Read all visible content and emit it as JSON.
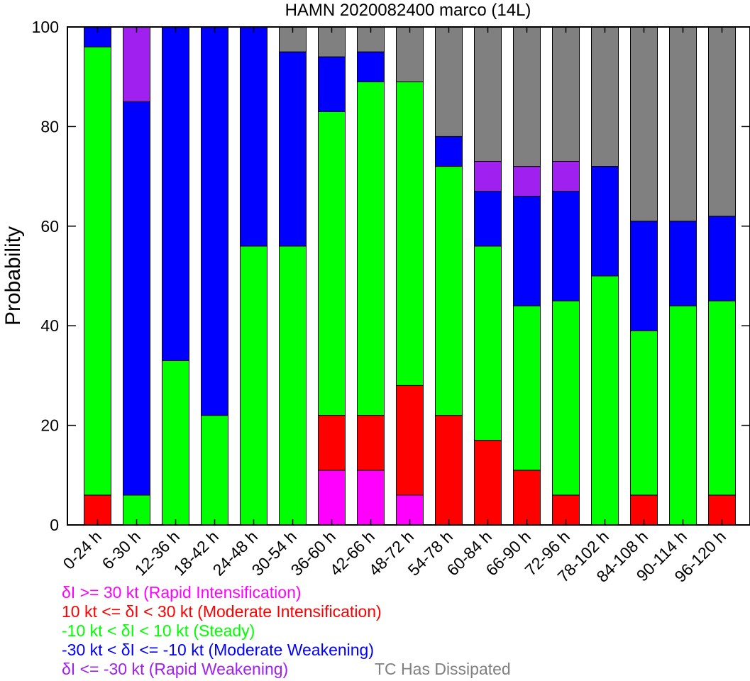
{
  "chart_data": {
    "type": "bar",
    "stacked": true,
    "title": "HAMN 2020082400 marco (14L)",
    "ylabel": "Probability",
    "xlabel": "",
    "ylim": [
      0,
      100
    ],
    "yticks": [
      0,
      20,
      40,
      60,
      80,
      100
    ],
    "grid": false,
    "categories": [
      "0-24 h",
      "6-30 h",
      "12-36 h",
      "18-42 h",
      "24-48 h",
      "30-54 h",
      "36-60 h",
      "42-66 h",
      "48-72 h",
      "54-78 h",
      "60-84 h",
      "66-90 h",
      "72-96 h",
      "78-102 h",
      "84-108 h",
      "90-114 h",
      "96-120 h"
    ],
    "series": [
      {
        "key": "ri",
        "color": "#ff00ff",
        "values": [
          0,
          0,
          0,
          0,
          0,
          0,
          11,
          11,
          6,
          0,
          0,
          0,
          0,
          0,
          0,
          0,
          0
        ]
      },
      {
        "key": "mi",
        "color": "#ff0000",
        "values": [
          6,
          0,
          0,
          0,
          0,
          0,
          11,
          11,
          22,
          22,
          17,
          11,
          6,
          0,
          6,
          0,
          6
        ]
      },
      {
        "key": "st",
        "color": "#00ff00",
        "values": [
          90,
          6,
          33,
          22,
          56,
          56,
          61,
          67,
          61,
          50,
          39,
          33,
          39,
          50,
          33,
          44,
          39
        ]
      },
      {
        "key": "mw",
        "color": "#0000ff",
        "values": [
          4,
          79,
          67,
          78,
          44,
          39,
          11,
          6,
          0,
          6,
          11,
          22,
          22,
          22,
          22,
          17,
          17
        ]
      },
      {
        "key": "rw",
        "color": "#a020f0",
        "values": [
          0,
          15,
          0,
          0,
          0,
          0,
          0,
          0,
          0,
          0,
          6,
          6,
          6,
          0,
          0,
          0,
          0
        ]
      },
      {
        "key": "dis",
        "color": "#808080",
        "values": [
          0,
          0,
          0,
          0,
          0,
          5,
          6,
          5,
          11,
          22,
          27,
          28,
          27,
          28,
          39,
          39,
          38
        ]
      }
    ],
    "legend": [
      {
        "text": "δI >= 30 kt (Rapid Intensification)",
        "color": "#ff00ff"
      },
      {
        "text": "10 kt <= δI < 30 kt (Moderate Intensification)",
        "color": "#ff0000"
      },
      {
        "text": "-10 kt < δI < 10 kt (Steady)",
        "color": "#00ff00"
      },
      {
        "text": "-30 kt < δI <= -10 kt (Moderate Weakening)",
        "color": "#0000ff"
      },
      {
        "text": "δI <= -30 kt (Rapid Weakening)",
        "color": "#a020f0"
      },
      {
        "text": "TC Has Dissipated",
        "color": "#808080"
      }
    ]
  }
}
